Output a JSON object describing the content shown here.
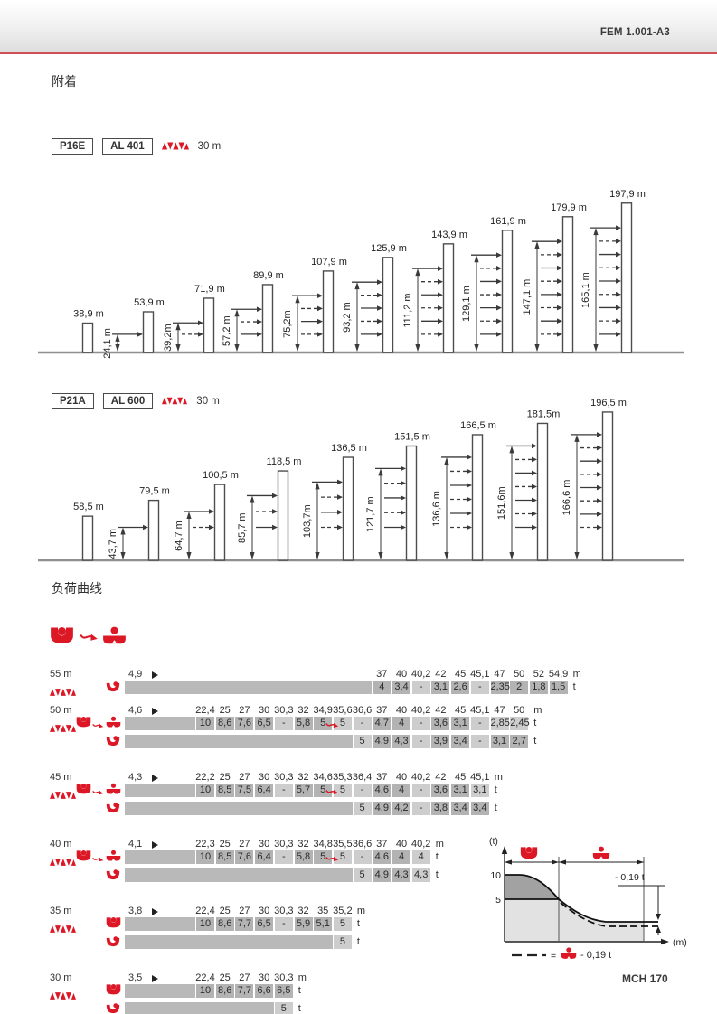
{
  "header": {
    "code": "FEM 1.001-A3"
  },
  "footer": {
    "code": "MCH 170"
  },
  "sections": {
    "attachment": "附着",
    "load_curves": "负荷曲线"
  },
  "accent_color": "#dc1826",
  "diagrams": [
    {
      "model": "P16E",
      "mast": "AL 401",
      "anchor_note": "30 m",
      "towers": [
        {
          "height_label": "38,9 m",
          "height_m": 38.9
        },
        {
          "height_label": "53,9 m",
          "height_m": 53.9,
          "anchor_label": "24,1 m",
          "top_anchor_m": 24.1,
          "anchors": 1
        },
        {
          "height_label": "71,9 m",
          "height_m": 71.9,
          "anchor_label": "39,2m",
          "top_anchor_m": 39.2,
          "anchors": 2
        },
        {
          "height_label": "89,9 m",
          "height_m": 89.9,
          "anchor_label": "57,2 m",
          "top_anchor_m": 57.2,
          "anchors": 3
        },
        {
          "height_label": "107,9 m",
          "height_m": 107.9,
          "anchor_label": "75,2m",
          "top_anchor_m": 75.2,
          "anchors": 4
        },
        {
          "height_label": "125,9 m",
          "height_m": 125.9,
          "anchor_label": "93,2 m",
          "top_anchor_m": 93.2,
          "anchors": 5
        },
        {
          "height_label": "143,9 m",
          "height_m": 143.9,
          "anchor_label": "111,2 m",
          "top_anchor_m": 111.2,
          "anchors": 6
        },
        {
          "height_label": "161,9 m",
          "height_m": 161.9,
          "anchor_label": "129,1 m",
          "top_anchor_m": 129.1,
          "anchors": 7
        },
        {
          "height_label": "179,9 m",
          "height_m": 179.9,
          "anchor_label": "147,1 m",
          "top_anchor_m": 147.1,
          "anchors": 8
        },
        {
          "height_label": "197,9 m",
          "height_m": 197.9,
          "anchor_label": "165,1 m",
          "top_anchor_m": 165.1,
          "anchors": 9
        }
      ]
    },
    {
      "model": "P21A",
      "mast": "AL 600",
      "anchor_note": "30 m",
      "towers": [
        {
          "height_label": "58,5 m",
          "height_m": 58.5
        },
        {
          "height_label": "79,5 m",
          "height_m": 79.5,
          "anchor_label": "43,7 m",
          "top_anchor_m": 43.7,
          "anchors": 1
        },
        {
          "height_label": "100,5 m",
          "height_m": 100.5,
          "anchor_label": "64,7 m",
          "top_anchor_m": 64.7,
          "anchors": 2
        },
        {
          "height_label": "118,5 m",
          "height_m": 118.5,
          "anchor_label": "85,7 m",
          "top_anchor_m": 85.7,
          "anchors": 3
        },
        {
          "height_label": "136,5 m",
          "height_m": 136.5,
          "anchor_label": "103,7m",
          "top_anchor_m": 103.7,
          "anchors": 4
        },
        {
          "height_label": "151,5 m",
          "height_m": 151.5,
          "anchor_label": "121,7 m",
          "top_anchor_m": 121.7,
          "anchors": 5
        },
        {
          "height_label": "166,5 m",
          "height_m": 166.5,
          "anchor_label": "136,6 m",
          "top_anchor_m": 136.6,
          "anchors": 6
        },
        {
          "height_label": "181,5m",
          "height_m": 181.5,
          "anchor_label": "151,6m",
          "top_anchor_m": 151.6,
          "anchors": 7
        },
        {
          "height_label": "196,5 m",
          "height_m": 196.5,
          "anchor_label": "166,6 m",
          "top_anchor_m": 166.6,
          "anchors": 8
        }
      ]
    }
  ],
  "load_tables": {
    "unit_distance": "m",
    "unit_load": "t",
    "legend_icons": [
      "trolley-2fall",
      "trolley-4fall"
    ],
    "blocks": [
      {
        "label": "55 m",
        "min_radius": "4,9",
        "lead_blanks": 9,
        "columns": [
          "37",
          "40",
          "40,2",
          "42",
          "45",
          "45,1",
          "47",
          "50",
          "52",
          "54,9"
        ],
        "rows": [
          {
            "icon": "hook",
            "values": [
              "4",
              "3,4",
              "-",
              "3,1",
              "2,6",
              "-",
              "2,35",
              "2",
              "1,8",
              "1,5"
            ],
            "light": [
              2,
              5
            ]
          }
        ]
      },
      {
        "label": "50 m",
        "min_radius": "4,6",
        "lead_blanks": 0,
        "columns": [
          "22,4",
          "25",
          "27",
          "30",
          "30,3",
          "32",
          "34,9",
          "35,6",
          "36,6",
          "37",
          "40",
          "40,2",
          "42",
          "45",
          "45,1",
          "47",
          "50"
        ],
        "rows": [
          {
            "icon": "pair",
            "values": [
              "10",
              "8,6",
              "7,6",
              "6,5",
              "-",
              "5,8",
              "5",
              "5",
              "-",
              "4,7",
              "4",
              "-",
              "3,6",
              "3,1",
              "-",
              "2,85",
              "2,45"
            ],
            "light": [
              4,
              7,
              8,
              11,
              14,
              15,
              16
            ],
            "arrow_after": 6
          },
          {
            "icon": "hook",
            "values": [
              "",
              "",
              "",
              "",
              "",
              "",
              "",
              "",
              "5",
              "4,9",
              "4,3",
              "-",
              "3,9",
              "3,4",
              "-",
              "3,1",
              "2,7"
            ],
            "light": [
              8,
              11,
              14
            ]
          }
        ]
      },
      {
        "label": "45 m",
        "min_radius": "4,3",
        "lead_blanks": 0,
        "columns": [
          "22,2",
          "25",
          "27",
          "30",
          "30,3",
          "32",
          "34,6",
          "35,3",
          "36,4",
          "37",
          "40",
          "40,2",
          "42",
          "45",
          "45,1"
        ],
        "rows": [
          {
            "icon": "pair",
            "values": [
              "10",
              "8,5",
              "7,5",
              "6,4",
              "-",
              "5,7",
              "5",
              "5",
              "-",
              "4,6",
              "4",
              "-",
              "3,6",
              "3,1",
              "3,1"
            ],
            "light": [
              4,
              7,
              8,
              11,
              14
            ],
            "arrow_after": 6
          },
          {
            "icon": "hook",
            "values": [
              "",
              "",
              "",
              "",
              "",
              "",
              "",
              "",
              "5",
              "4,9",
              "4,2",
              "-",
              "3,8",
              "3,4",
              "3,4"
            ],
            "light": [
              8,
              11
            ]
          }
        ]
      },
      {
        "label": "40 m",
        "min_radius": "4,1",
        "lead_blanks": 0,
        "columns": [
          "22,3",
          "25",
          "27",
          "30",
          "30,3",
          "32",
          "34,8",
          "35,5",
          "36,6",
          "37",
          "40",
          "40,2"
        ],
        "rows": [
          {
            "icon": "pair",
            "values": [
              "10",
              "8,5",
              "7,6",
              "6,4",
              "-",
              "5,8",
              "5",
              "5",
              "-",
              "4,6",
              "4",
              "4"
            ],
            "light": [
              4,
              7,
              8,
              11
            ],
            "arrow_after": 6
          },
          {
            "icon": "hook",
            "values": [
              "",
              "",
              "",
              "",
              "",
              "",
              "",
              "",
              "5",
              "4,9",
              "4,3",
              "4,3"
            ],
            "light": [
              8,
              11
            ]
          }
        ]
      },
      {
        "label": "35 m",
        "min_radius": "3,8",
        "lead_blanks": 0,
        "columns": [
          "22,4",
          "25",
          "27",
          "30",
          "30,3",
          "32",
          "35",
          "35,2"
        ],
        "rows": [
          {
            "icon": "trolley2",
            "values": [
              "10",
              "8,6",
              "7,7",
              "6,5",
              "-",
              "5,9",
              "5,1",
              "5"
            ],
            "light": [
              4,
              7
            ]
          },
          {
            "icon": "hook",
            "values": [
              "",
              "",
              "",
              "",
              "",
              "",
              "",
              "5"
            ],
            "light": [
              7
            ]
          }
        ]
      },
      {
        "label": "30 m",
        "min_radius": "3,5",
        "lead_blanks": 0,
        "columns": [
          "22,4",
          "25",
          "27",
          "30",
          "30,3"
        ],
        "rows": [
          {
            "icon": "trolley2",
            "values": [
              "10",
              "8,6",
              "7,7",
              "6,6",
              "6,5"
            ],
            "light": []
          },
          {
            "icon": "hook",
            "values": [
              "",
              "",
              "",
              "",
              "5"
            ],
            "light": [
              4
            ]
          }
        ]
      }
    ]
  },
  "mini_chart": {
    "type": "area",
    "y_axis_label": "(t)",
    "x_axis_label": "(m)",
    "y_ticks": [
      "10",
      "5"
    ],
    "regions": [
      {
        "icon": "trolley-2fall",
        "max_load_t": 10
      },
      {
        "icon": "trolley-4fall",
        "max_load_t": 5
      }
    ],
    "offset_annotation": "- 0,19 t",
    "legend": {
      "equals": "=",
      "icon": "trolley-4fall",
      "text": "- 0,19 t"
    },
    "description": "load decreases with radius; dashed curve = 4-fall curve minus 0,19 t"
  }
}
